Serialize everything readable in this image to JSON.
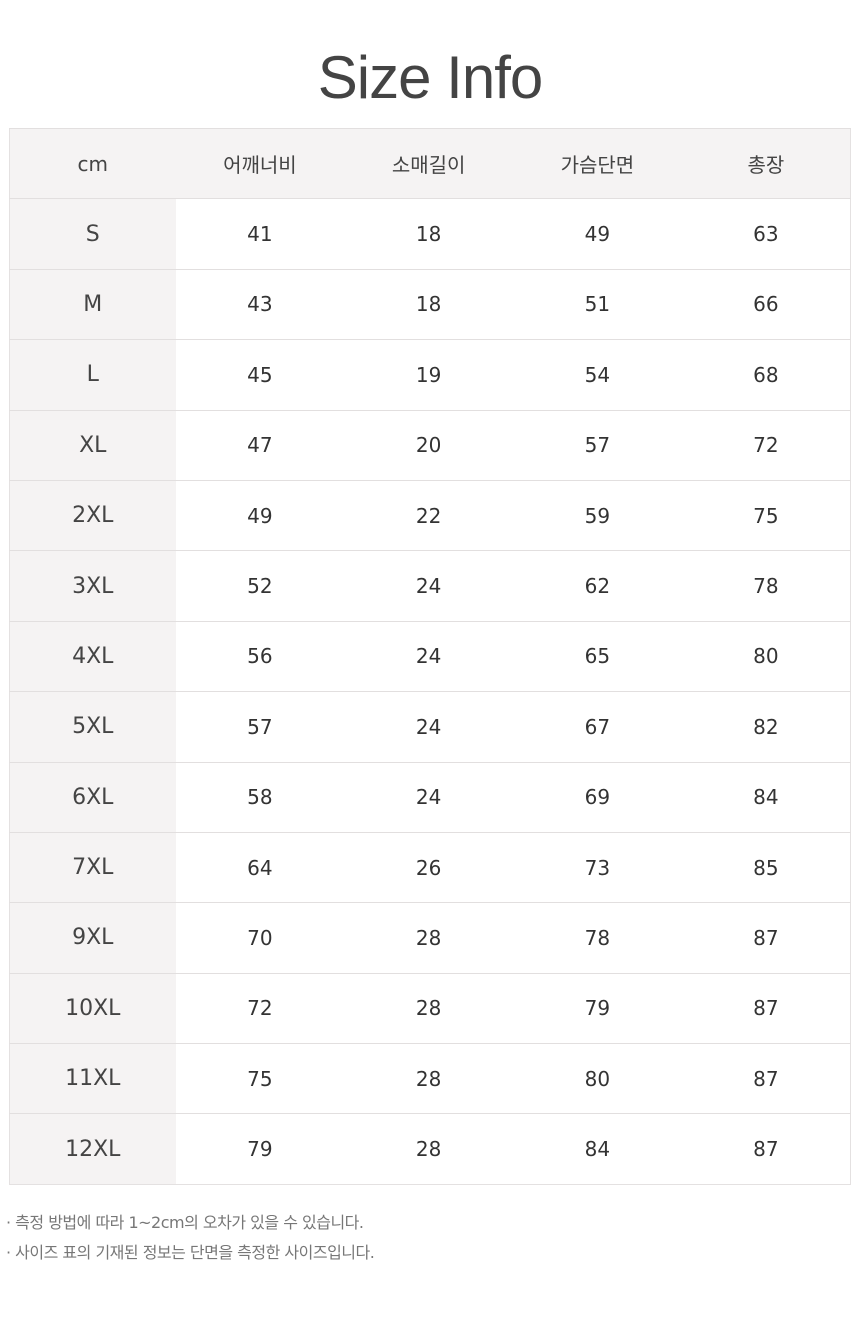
{
  "title": "Size Info",
  "table": {
    "headers": [
      "cm",
      "어깨너비",
      "소매길이",
      "가슴단면",
      "총장"
    ],
    "rows": [
      [
        "S",
        "41",
        "18",
        "49",
        "63"
      ],
      [
        "M",
        "43",
        "18",
        "51",
        "66"
      ],
      [
        "L",
        "45",
        "19",
        "54",
        "68"
      ],
      [
        "XL",
        "47",
        "20",
        "57",
        "72"
      ],
      [
        "2XL",
        "49",
        "22",
        "59",
        "75"
      ],
      [
        "3XL",
        "52",
        "24",
        "62",
        "78"
      ],
      [
        "4XL",
        "56",
        "24",
        "65",
        "80"
      ],
      [
        "5XL",
        "57",
        "24",
        "67",
        "82"
      ],
      [
        "6XL",
        "58",
        "24",
        "69",
        "84"
      ],
      [
        "7XL",
        "64",
        "26",
        "73",
        "85"
      ],
      [
        "9XL",
        "70",
        "28",
        "78",
        "87"
      ],
      [
        "10XL",
        "72",
        "28",
        "79",
        "87"
      ],
      [
        "11XL",
        "75",
        "28",
        "80",
        "87"
      ],
      [
        "12XL",
        "79",
        "28",
        "84",
        "87"
      ]
    ]
  },
  "notes": [
    "· 측정 방법에 따라 1~2cm의 오차가 있을 수 있습니다.",
    "· 사이즈 표의 기재된 정보는 단면을 측정한 사이즈입니다."
  ]
}
